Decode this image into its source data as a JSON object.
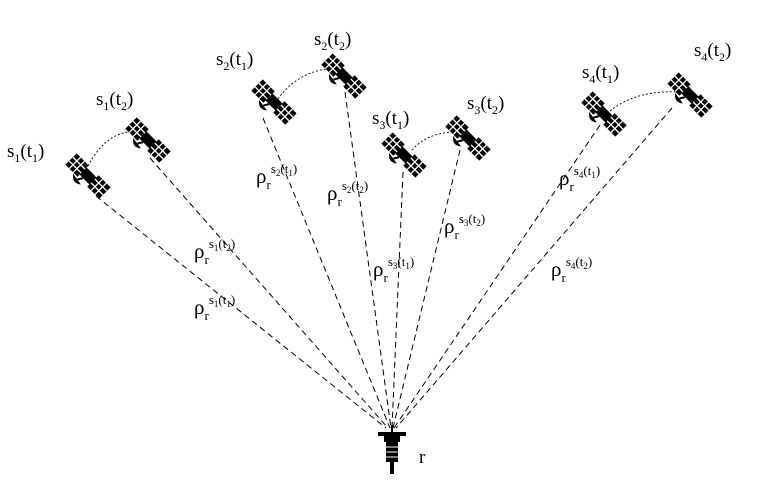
{
  "receiver": {
    "label": "r"
  },
  "satellites": [
    {
      "id": "s1",
      "t1": {
        "base": "s",
        "idx": "1",
        "time": "t",
        "tidx": "1"
      },
      "t2": {
        "base": "s",
        "idx": "1",
        "time": "t",
        "tidx": "2"
      },
      "rho_t1": {
        "base": "ρ",
        "sub": "r",
        "sup_s": "s",
        "sup_idx": "1",
        "sup_t": "t",
        "sup_tidx": "1"
      },
      "rho_t2": {
        "base": "ρ",
        "sub": "r",
        "sup_s": "s",
        "sup_idx": "1",
        "sup_t": "t",
        "sup_tidx": "2"
      }
    },
    {
      "id": "s2",
      "t1": {
        "base": "s",
        "idx": "2",
        "time": "t",
        "tidx": "1"
      },
      "t2": {
        "base": "s",
        "idx": "2",
        "time": "t",
        "tidx": "2"
      },
      "rho_t1": {
        "base": "ρ",
        "sub": "r",
        "sup_s": "s",
        "sup_idx": "2",
        "sup_t": "t",
        "sup_tidx": "1"
      },
      "rho_t2": {
        "base": "ρ",
        "sub": "r",
        "sup_s": "s",
        "sup_idx": "2",
        "sup_t": "t",
        "sup_tidx": "2"
      }
    },
    {
      "id": "s3",
      "t1": {
        "base": "s",
        "idx": "3",
        "time": "t",
        "tidx": "1"
      },
      "t2": {
        "base": "s",
        "idx": "3",
        "time": "t",
        "tidx": "2"
      },
      "rho_t1": {
        "base": "ρ",
        "sub": "r",
        "sup_s": "s",
        "sup_idx": "3",
        "sup_t": "t",
        "sup_tidx": "1"
      },
      "rho_t2": {
        "base": "ρ",
        "sub": "r",
        "sup_s": "s",
        "sup_idx": "3",
        "sup_t": "t",
        "sup_tidx": "2"
      }
    },
    {
      "id": "s4",
      "t1": {
        "base": "s",
        "idx": "4",
        "time": "t",
        "tidx": "1"
      },
      "t2": {
        "base": "s",
        "idx": "4",
        "time": "t",
        "tidx": "2"
      },
      "rho_t1": {
        "base": "ρ",
        "sub": "r",
        "sup_s": "s",
        "sup_idx": "4",
        "sup_t": "t",
        "sup_tidx": "1"
      },
      "rho_t2": {
        "base": "ρ",
        "sub": "r",
        "sup_s": "s",
        "sup_idx": "4",
        "sup_t": "t",
        "sup_tidx": "2"
      }
    }
  ],
  "icons": {
    "satellite": "satellite-icon",
    "receiver": "receiver-antenna-icon"
  }
}
